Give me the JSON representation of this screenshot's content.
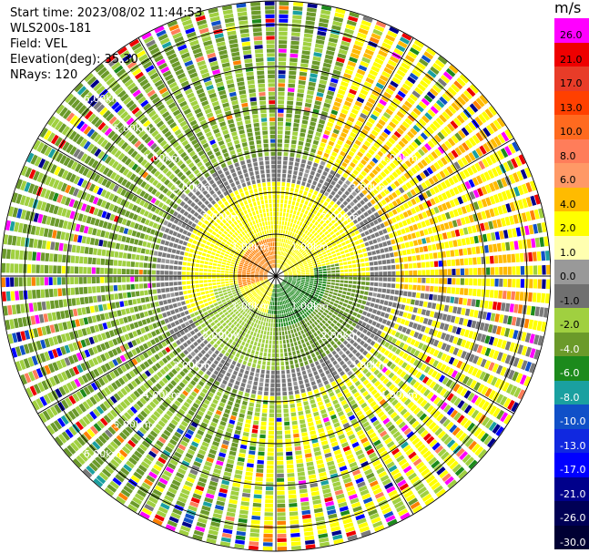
{
  "info": {
    "start_time": "Start time: 2023/08/02 11:44:53",
    "instrument": "WLS200s-181",
    "field": "Field: VEL",
    "elevation": "Elevation(deg): 35.30",
    "nrays": "NRays: 120"
  },
  "colorbar": {
    "unit": "m/s",
    "levels": [
      "26.0",
      "21.0",
      "17.0",
      "13.0",
      "10.0",
      "8.0",
      "6.0",
      "4.0",
      "2.0",
      "1.0",
      "0.0",
      "-1.0",
      "-2.0",
      "-4.0",
      "-6.0",
      "-8.0",
      "-10.0",
      "-13.0",
      "-17.0",
      "-21.0",
      "-26.0",
      "-30.0"
    ],
    "colors": [
      "#ff00ff",
      "#ee0000",
      "#e83c28",
      "#ff4000",
      "#ff6a1f",
      "#ff7d5a",
      "#ff9966",
      "#ffbb00",
      "#ffff00",
      "#ffffb0",
      "#999999",
      "#707070",
      "#a0d040",
      "#6b9a2a",
      "#1c8a1c",
      "#1aa0a0",
      "#1050c8",
      "#1028e0",
      "#0000ff",
      "#00008b",
      "#000055",
      "#000033"
    ]
  },
  "chart_data": {
    "type": "ppi",
    "field": "VEL",
    "units": "m/s",
    "nrays": 120,
    "elevation_deg": 35.3,
    "range_rings_km": [
      1,
      2,
      3,
      4,
      5,
      6
    ],
    "range_ring_labels": [
      "1.00km",
      "2.00km",
      "3.00km",
      "4.00km",
      "5.00km",
      "6.00km"
    ],
    "color_levels": [
      -30,
      -26,
      -21,
      -17,
      -13,
      -10,
      -8,
      -6,
      -4,
      -2,
      -1,
      0,
      1,
      2,
      4,
      6,
      8,
      10,
      13,
      17,
      21,
      26
    ]
  }
}
